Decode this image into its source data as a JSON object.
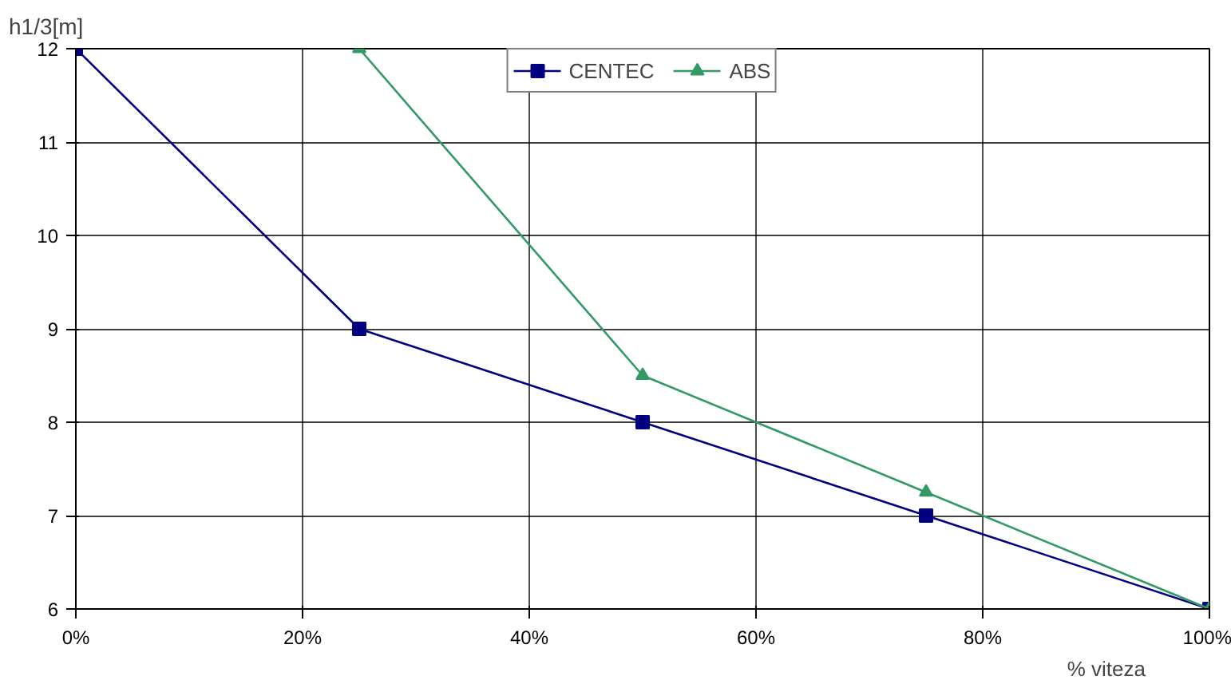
{
  "chart_data": {
    "type": "line",
    "ylabel": "h1/3[m]",
    "xlabel": "% viteza",
    "x": [
      0,
      25,
      50,
      75,
      100
    ],
    "series": [
      {
        "name": "CENTEC",
        "color": "#000080",
        "marker": "square",
        "values": [
          12,
          9,
          8,
          7,
          6
        ]
      },
      {
        "name": "ABS",
        "color": "#339966",
        "marker": "triangle",
        "values": [
          null,
          12,
          8.5,
          7.25,
          6
        ]
      }
    ],
    "xlim": [
      0,
      100
    ],
    "xticks": [
      {
        "value": 0,
        "label": "0%"
      },
      {
        "value": 20,
        "label": "20%"
      },
      {
        "value": 40,
        "label": "40%"
      },
      {
        "value": 60,
        "label": "60%"
      },
      {
        "value": 80,
        "label": "80%"
      },
      {
        "value": 100,
        "label": "100%"
      }
    ],
    "ylim": [
      6,
      12
    ],
    "yticks": [
      6,
      7,
      8,
      9,
      10,
      11,
      12
    ],
    "grid": true,
    "legend": "top",
    "line_style": "solid"
  }
}
